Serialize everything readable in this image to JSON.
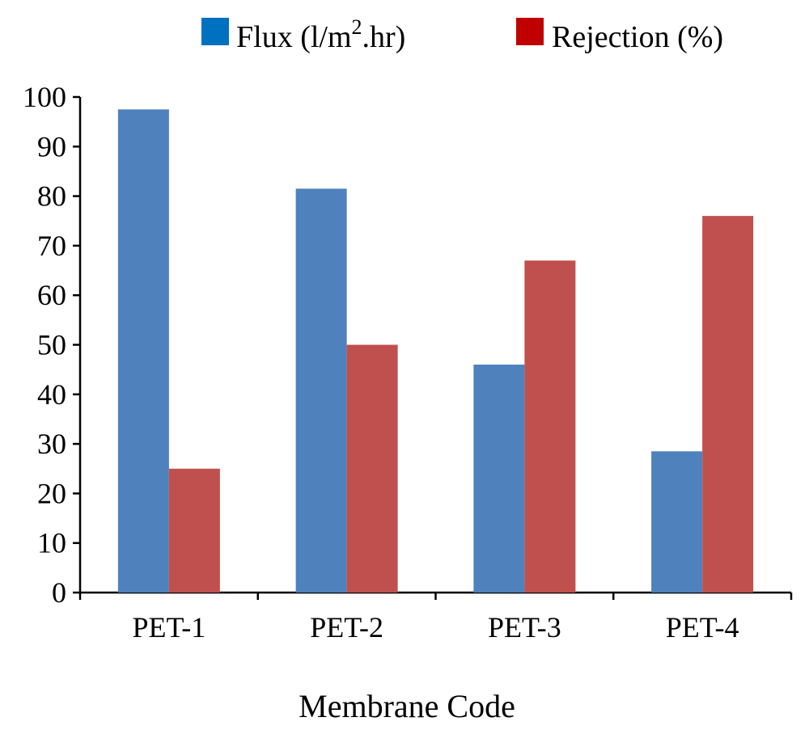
{
  "chart_data": {
    "type": "bar",
    "categories": [
      "PET-1",
      "PET-2",
      "PET-3",
      "PET-4"
    ],
    "series": [
      {
        "name": "Flux (l/m2.hr)",
        "values": [
          97.5,
          81.5,
          46,
          28.5
        ],
        "color": "#4F81BD",
        "legend_color": "#0070C0"
      },
      {
        "name": "Rejection (%)",
        "values": [
          25,
          50,
          67,
          76
        ],
        "color": "#C0504D",
        "legend_color": "#C00000"
      }
    ],
    "xlabel": "Membrane Code",
    "ylabel": "",
    "ylim": [
      0,
      100
    ],
    "yticks": [
      0,
      10,
      20,
      30,
      40,
      50,
      60,
      70,
      80,
      90,
      100
    ],
    "grid": false,
    "legend_position": "top"
  },
  "legend": {
    "flux_prefix": "Flux (l/m",
    "flux_superscript": "2",
    "flux_suffix": ".hr)",
    "rejection_label": "Rejection (%)"
  }
}
